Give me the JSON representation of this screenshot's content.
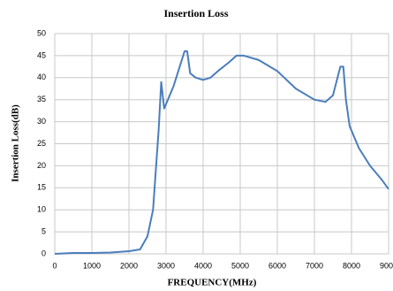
{
  "chart_data": {
    "type": "line",
    "title": "Insertion Loss",
    "xlabel": "FREQUENCY(MHz)",
    "ylabel": "Insertion Loss(dB)",
    "x": [
      0,
      500,
      1000,
      1500,
      2000,
      2300,
      2500,
      2650,
      2800,
      2870,
      2950,
      3050,
      3200,
      3350,
      3500,
      3570,
      3650,
      3800,
      4000,
      4200,
      4400,
      4700,
      4900,
      5100,
      5500,
      6000,
      6500,
      7000,
      7300,
      7500,
      7700,
      7780,
      7850,
      7950,
      8200,
      8500,
      8800,
      9000
    ],
    "series": [
      {
        "name": "Insertion Loss",
        "color": "#4a7ebb",
        "values": [
          0,
          0.2,
          0.2,
          0.3,
          0.6,
          1,
          4,
          10,
          28,
          39,
          33,
          35,
          38,
          42,
          46,
          46,
          41,
          40,
          39.5,
          40,
          41.5,
          43.5,
          45,
          45,
          44,
          41.5,
          37.5,
          35,
          34.5,
          36,
          42.5,
          42.5,
          35,
          29,
          24,
          20,
          17,
          14.7
        ]
      }
    ],
    "xlim": [
      0,
      9000
    ],
    "xticks": [
      0,
      1000,
      2000,
      3000,
      4000,
      5000,
      6000,
      7000,
      8000,
      9000
    ],
    "ylim": [
      0,
      50
    ],
    "yticks": [
      0,
      5,
      10,
      15,
      20,
      25,
      30,
      35,
      40,
      45,
      50
    ],
    "grid": true
  }
}
